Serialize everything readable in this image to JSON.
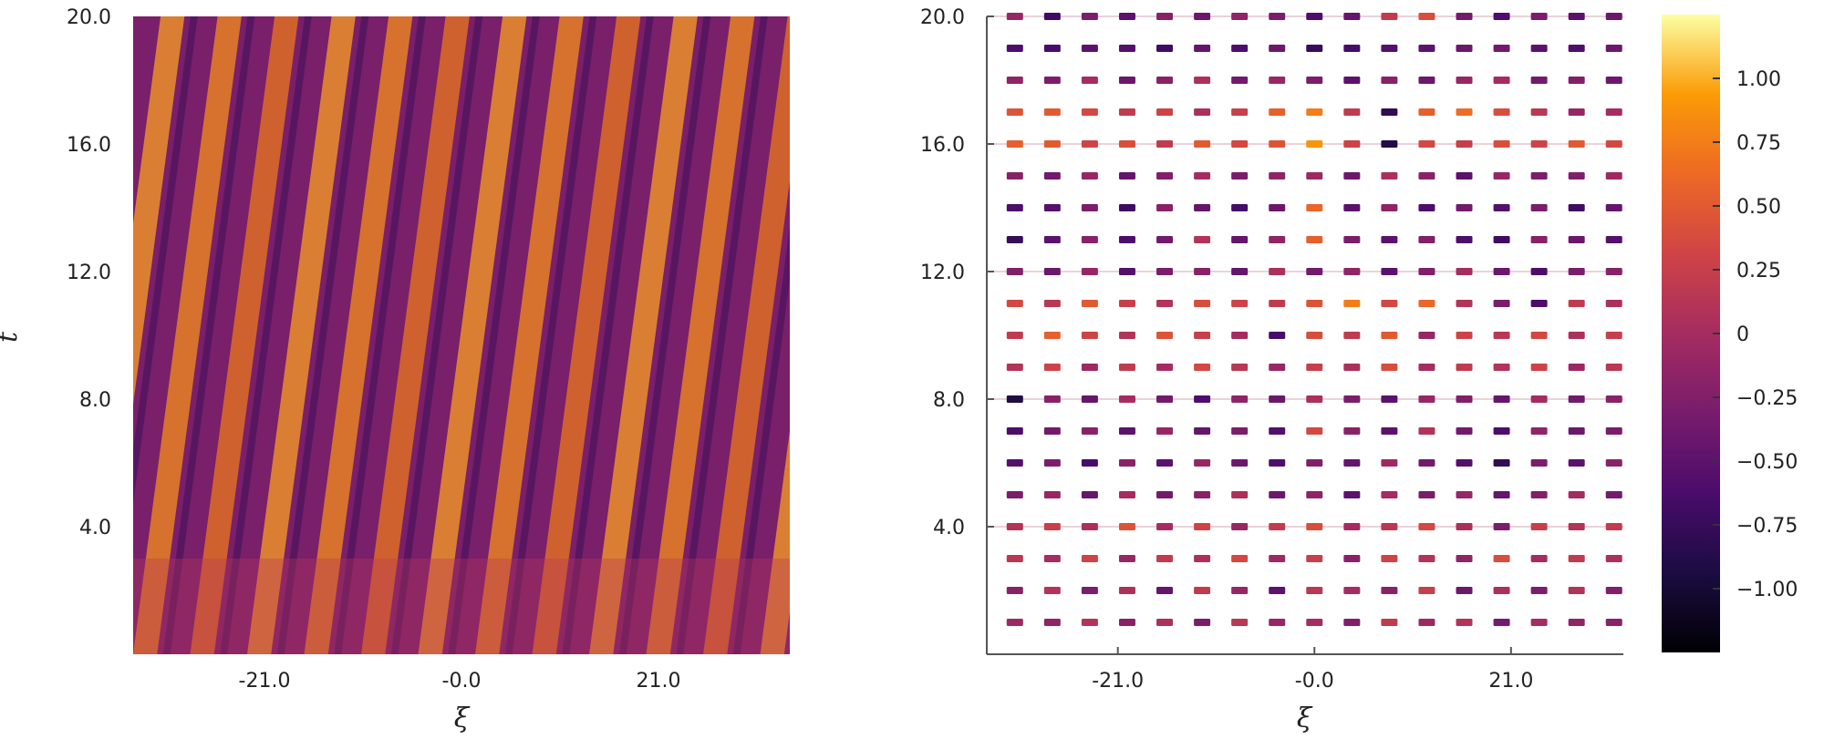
{
  "chart_data": [
    {
      "type": "heatmap",
      "title": "",
      "xlabel": "ξ",
      "ylabel": "t",
      "xlim": [
        -35,
        35
      ],
      "ylim": [
        0,
        20
      ],
      "x_ticks": [
        -21,
        0,
        21
      ],
      "x_tick_labels": [
        "-21.0",
        "-0.0",
        "21.0"
      ],
      "y_ticks": [
        4,
        8,
        12,
        16,
        20
      ],
      "y_tick_labels": [
        "4.0",
        "8.0",
        "12.0",
        "16.0",
        "20.0"
      ],
      "pattern": {
        "description_values": "diagonal travelling stripes",
        "stripe_count": 13,
        "stripe_slope_xi_per_t": 0.45
      },
      "colormap": "inferno",
      "grid": false
    },
    {
      "type": "heatmap",
      "title": "",
      "xlabel": "ξ",
      "ylabel": "",
      "xlim": [
        -35,
        33
      ],
      "ylim": [
        0,
        20
      ],
      "x_ticks": [
        -21,
        0,
        21
      ],
      "x_tick_labels": [
        "-21.0",
        "-0.0",
        "21.0"
      ],
      "y_ticks": [
        4,
        8,
        12,
        16,
        20
      ],
      "y_tick_labels": [
        "4.0",
        "8.0",
        "12.0",
        "16.0",
        "20.0"
      ],
      "x_centers": [
        -32,
        -28,
        -24,
        -20,
        -16,
        -12,
        -8,
        -4,
        0,
        4,
        8,
        12,
        16,
        20,
        24,
        28,
        32
      ],
      "y_centers": [
        1,
        2,
        3,
        4,
        5,
        6,
        7,
        8,
        9,
        10,
        11,
        12,
        13,
        14,
        15,
        16,
        17,
        18,
        19,
        20
      ],
      "values_by_row_t": [
        [
          -0.05,
          -0.15,
          0.1,
          -0.2,
          0.05,
          -0.3,
          0.15,
          -0.1,
          0.0,
          -0.25,
          0.2,
          -0.05,
          0.1,
          -0.35,
          0.0,
          -0.15,
          -0.2
        ],
        [
          -0.2,
          0.1,
          -0.3,
          0.05,
          -0.45,
          0.2,
          -0.1,
          -0.5,
          0.15,
          0.0,
          -0.2,
          0.25,
          -0.4,
          0.05,
          -0.3,
          0.1,
          -0.25
        ],
        [
          0.15,
          0.0,
          0.3,
          -0.1,
          0.2,
          0.05,
          0.35,
          -0.05,
          0.25,
          -0.2,
          0.3,
          0.1,
          -0.15,
          0.4,
          0.0,
          0.2,
          0.05
        ],
        [
          0.1,
          0.25,
          0.05,
          0.45,
          0.0,
          0.3,
          -0.1,
          0.2,
          0.4,
          0.0,
          0.15,
          0.35,
          0.05,
          -0.3,
          0.25,
          0.1,
          0.2
        ],
        [
          -0.3,
          -0.1,
          -0.45,
          0.0,
          -0.35,
          -0.2,
          0.05,
          -0.4,
          -0.15,
          -0.5,
          0.0,
          -0.3,
          -0.1,
          -0.45,
          -0.25,
          0.0,
          -0.35
        ],
        [
          -0.55,
          -0.3,
          -0.65,
          -0.2,
          -0.5,
          -0.1,
          -0.4,
          -0.6,
          -0.25,
          -0.45,
          -0.05,
          -0.35,
          -0.55,
          -0.8,
          -0.3,
          -0.5,
          -0.2
        ],
        [
          -0.6,
          -0.35,
          -0.2,
          -0.5,
          -0.1,
          -0.45,
          -0.3,
          -0.55,
          0.35,
          -0.2,
          -0.5,
          0.1,
          -0.35,
          -0.6,
          -0.15,
          -0.4,
          -0.3
        ],
        [
          -0.9,
          -0.2,
          -0.45,
          0.0,
          -0.35,
          -0.6,
          -0.15,
          -0.4,
          0.05,
          -0.3,
          -0.5,
          -0.1,
          -0.25,
          -0.45,
          0.0,
          -0.35,
          -0.2
        ],
        [
          0.1,
          0.3,
          -0.05,
          0.2,
          0.0,
          0.35,
          0.15,
          -0.1,
          0.25,
          0.05,
          0.4,
          0.0,
          0.2,
          0.1,
          0.3,
          -0.05,
          0.15
        ],
        [
          0.2,
          0.55,
          0.3,
          0.1,
          0.45,
          0.25,
          0.0,
          -0.65,
          0.4,
          0.2,
          0.5,
          -0.1,
          0.3,
          0.15,
          0.35,
          0.05,
          0.25
        ],
        [
          0.35,
          0.15,
          0.5,
          0.25,
          0.1,
          0.4,
          0.3,
          0.2,
          0.45,
          0.75,
          0.35,
          0.6,
          0.1,
          -0.3,
          -0.6,
          0.2,
          0.05
        ],
        [
          -0.25,
          -0.4,
          -0.1,
          -0.55,
          -0.3,
          -0.2,
          -0.45,
          0.05,
          -0.35,
          -0.15,
          -0.5,
          -0.25,
          0.0,
          -0.4,
          -0.6,
          -0.3,
          -0.2
        ],
        [
          -0.75,
          -0.5,
          -0.2,
          -0.6,
          -0.35,
          0.1,
          -0.45,
          -0.15,
          0.55,
          -0.3,
          -0.5,
          -0.25,
          -0.6,
          -0.7,
          -0.2,
          -0.4,
          -0.55
        ],
        [
          -0.6,
          -0.55,
          -0.3,
          -0.7,
          -0.2,
          -0.45,
          -0.65,
          -0.4,
          0.6,
          -0.5,
          -0.15,
          -0.6,
          -0.35,
          -0.55,
          -0.3,
          -0.7,
          -0.45
        ],
        [
          -0.2,
          -0.35,
          -0.1,
          -0.45,
          -0.25,
          0.0,
          -0.3,
          -0.15,
          -0.05,
          -0.4,
          0.05,
          -0.2,
          -0.5,
          -0.1,
          -0.3,
          -0.25,
          -0.05
        ],
        [
          0.55,
          0.5,
          0.3,
          0.4,
          0.2,
          0.5,
          0.35,
          0.45,
          0.9,
          0.3,
          -0.9,
          0.35,
          0.25,
          0.4,
          0.3,
          0.5,
          0.35
        ],
        [
          0.45,
          0.5,
          0.35,
          0.2,
          0.3,
          0.05,
          0.25,
          0.55,
          0.75,
          0.2,
          -0.8,
          0.55,
          0.65,
          0.4,
          0.15,
          -0.1,
          0.0
        ],
        [
          -0.15,
          -0.3,
          0.0,
          -0.4,
          -0.2,
          0.05,
          -0.35,
          -0.1,
          -0.3,
          -0.5,
          -0.2,
          -0.4,
          -0.1,
          0.0,
          -0.35,
          -0.25,
          -0.4
        ],
        [
          -0.6,
          -0.65,
          -0.5,
          -0.55,
          -0.7,
          -0.45,
          -0.6,
          -0.4,
          -0.75,
          -0.65,
          -0.55,
          -0.5,
          -0.4,
          -0.35,
          -0.5,
          -0.6,
          -0.4
        ],
        [
          -0.1,
          -0.7,
          -0.3,
          -0.5,
          -0.2,
          -0.4,
          -0.15,
          -0.3,
          -0.6,
          -0.45,
          0.2,
          0.4,
          -0.35,
          -0.6,
          -0.3,
          -0.5,
          -0.4
        ]
      ],
      "colormap": "inferno",
      "grid": true
    }
  ],
  "colorbar": {
    "range": [
      -1.25,
      1.25
    ],
    "ticks": [
      1.0,
      0.75,
      0.5,
      0.25,
      0,
      -0.25,
      -0.5,
      -0.75,
      -1.0
    ],
    "tick_labels": [
      "1.00",
      "0.75",
      "0.50",
      "0.25",
      "0",
      "−0.25",
      "−0.50",
      "−0.75",
      "−1.00"
    ],
    "colormap": "inferno"
  }
}
